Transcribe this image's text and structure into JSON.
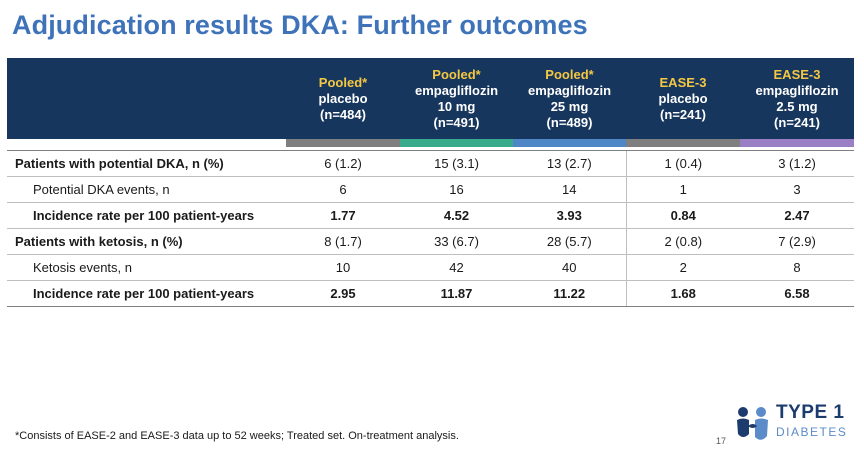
{
  "title": "Adjudication results DKA: Further outcomes",
  "columns": [
    {
      "line1": "Pooled*",
      "rest": [
        "placebo",
        "(n=484)"
      ],
      "bar_color": "#7f7f7f"
    },
    {
      "line1": "Pooled*",
      "rest": [
        "empagliflozin",
        "10 mg",
        "(n=491)"
      ],
      "bar_color": "#3aaa8c"
    },
    {
      "line1": "Pooled*",
      "rest": [
        "empagliflozin",
        "25 mg",
        "(n=489)"
      ],
      "bar_color": "#4f86c6"
    },
    {
      "line1": "EASE-3",
      "rest": [
        "placebo",
        "(n=241)"
      ],
      "bar_color": "#7f7f7f"
    },
    {
      "line1": "EASE-3",
      "rest": [
        "empagliflozin",
        "2.5 mg",
        "(n=241)"
      ],
      "bar_color": "#9b7fc4"
    }
  ],
  "rows": [
    {
      "label": "Patients with potential DKA, n (%)",
      "values": [
        "6 (1.2)",
        "15 (3.1)",
        "13 (2.7)",
        "1 (0.4)",
        "3 (1.2)"
      ]
    },
    {
      "label": "Potential DKA events, n",
      "values": [
        "6",
        "16",
        "14",
        "1",
        "3"
      ]
    },
    {
      "label": "Incidence rate per 100 patient-years",
      "values": [
        "1.77",
        "4.52",
        "3.93",
        "0.84",
        "2.47"
      ]
    },
    {
      "label": "Patients with ketosis, n (%)",
      "values": [
        "8 (1.7)",
        "33 (6.7)",
        "28 (5.7)",
        "2 (0.8)",
        "7 (2.9)"
      ]
    },
    {
      "label": "Ketosis events, n",
      "values": [
        "10",
        "42",
        "40",
        "2",
        "8"
      ]
    },
    {
      "label": "Incidence rate per 100 patient-years",
      "values": [
        "2.95",
        "11.87",
        "11.22",
        "1.68",
        "6.58"
      ]
    }
  ],
  "footnote": "*Consists of EASE-2 and EASE-3 data up to 52 weeks; Treated set. On-treatment analysis.",
  "page_number": "17",
  "logo": {
    "line1": "TYPE 1",
    "line2": "DIABETES"
  }
}
